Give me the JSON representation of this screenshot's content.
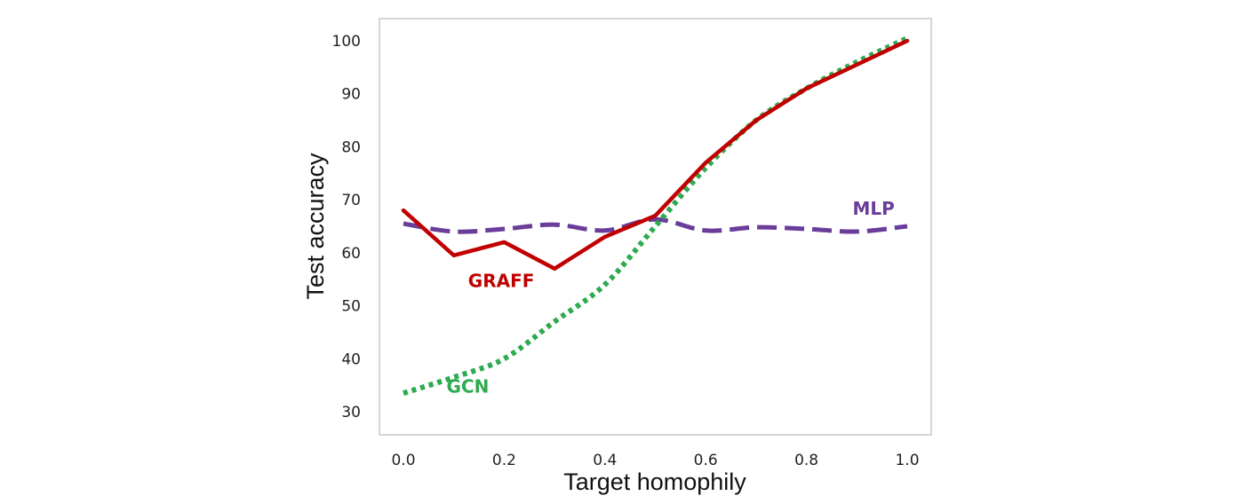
{
  "chart_data": {
    "type": "line",
    "title": "",
    "xlabel": "Target homophily",
    "ylabel": "Test accuracy",
    "xlim": [
      0.0,
      1.0
    ],
    "ylim": [
      30,
      100
    ],
    "xticks": [
      "0.0",
      "0.2",
      "0.4",
      "0.6",
      "0.8",
      "1.0"
    ],
    "yticks": [
      "30",
      "40",
      "50",
      "60",
      "70",
      "80",
      "90",
      "100"
    ],
    "grid": false,
    "legend": "inline labels",
    "x": [
      0.0,
      0.1,
      0.2,
      0.3,
      0.4,
      0.5,
      0.6,
      0.7,
      0.8,
      0.9,
      1.0
    ],
    "series": [
      {
        "name": "GRAFF",
        "color": "#c00000",
        "style": "solid",
        "values": [
          68,
          59.5,
          62,
          57,
          63,
          67,
          77,
          85,
          91,
          95.5,
          100
        ]
      },
      {
        "name": "GCN",
        "color": "#2eaa50",
        "style": "dotted",
        "values": [
          33.5,
          36.5,
          40,
          47,
          54,
          65,
          76,
          85,
          91,
          96,
          100.5
        ]
      },
      {
        "name": "MLP",
        "color": "#6a3d9a",
        "style": "dashed",
        "values": [
          65.5,
          64,
          64.5,
          65.3,
          64.2,
          66.3,
          64.2,
          64.8,
          64.5,
          64,
          65
        ]
      }
    ]
  }
}
